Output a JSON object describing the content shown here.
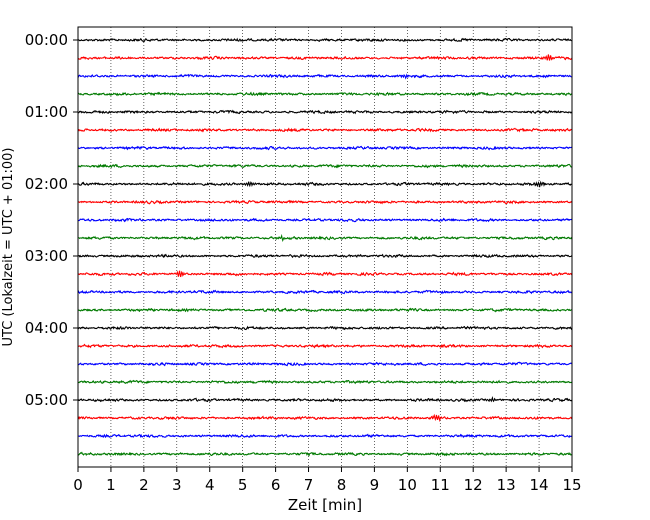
{
  "chart_data": {
    "type": "line",
    "xlabel": "Zeit  [min]",
    "ylabel": "UTC (Lokalzeit = UTC + 01:00)",
    "xlim": [
      0,
      15
    ],
    "x_ticks": [
      "0",
      "1",
      "2",
      "3",
      "4",
      "5",
      "6",
      "7",
      "8",
      "9",
      "10",
      "11",
      "12",
      "13",
      "14",
      "15"
    ],
    "y_tick_labels": [
      "00:00",
      "01:00",
      "02:00",
      "03:00",
      "04:00",
      "05:00"
    ],
    "rows_per_hour": 4,
    "row_count": 24,
    "row_colors": [
      "#000000",
      "#ff0000",
      "#0000ff",
      "#007a00"
    ],
    "grid": "vertical-dotted",
    "spikes": [
      {
        "row": 1,
        "minute": 14.3,
        "amplitude": 1.8
      },
      {
        "row": 8,
        "minute": 5.2,
        "amplitude": 1.2
      },
      {
        "row": 8,
        "minute": 14.0,
        "amplitude": 1.3
      },
      {
        "row": 13,
        "minute": 3.1,
        "amplitude": 1.6
      },
      {
        "row": 21,
        "minute": 10.9,
        "amplitude": 1.5
      },
      {
        "row": 11,
        "minute": 6.2,
        "amplitude": 1.1
      },
      {
        "row": 2,
        "minute": 10.0,
        "amplitude": 0.9
      },
      {
        "row": 20,
        "minute": 12.6,
        "amplitude": 1.0
      }
    ]
  }
}
